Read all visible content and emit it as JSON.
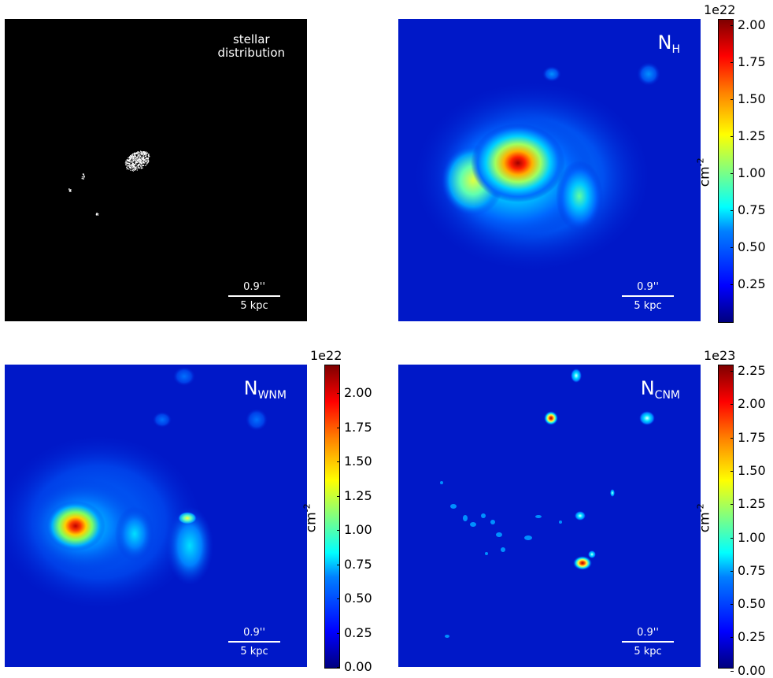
{
  "panels": {
    "stellar": {
      "label_line1": "stellar",
      "label_line2": "distribution",
      "scale_top": "0.9''",
      "scale_bottom": "5 kpc"
    },
    "nh": {
      "title_main": "N",
      "title_sub": "H",
      "scale_top": "0.9''",
      "scale_bottom": "5 kpc"
    },
    "nwnm": {
      "title_main": "N",
      "title_sub": "WNM",
      "scale_top": "0.9''",
      "scale_bottom": "5 kpc"
    },
    "ncnm": {
      "title_main": "N",
      "title_sub": "CNM",
      "scale_top": "0.9''",
      "scale_bottom": "5 kpc"
    }
  },
  "colorbars": {
    "nh": {
      "exponent": "1e22",
      "unit_base": "cm",
      "unit_sup": "-2",
      "ticks": [
        "2.00",
        "1.75",
        "1.50",
        "1.25",
        "1.00",
        "0.75",
        "0.50",
        "0.25"
      ]
    },
    "nwnm": {
      "exponent": "1e22",
      "unit_base": "cm",
      "unit_sup": "-2",
      "ticks": [
        "2.00",
        "1.75",
        "1.50",
        "1.25",
        "1.00",
        "0.75",
        "0.50",
        "0.25",
        "0.00"
      ]
    },
    "ncnm": {
      "exponent": "1e23",
      "unit_base": "cm",
      "unit_sup": "-2",
      "ticks": [
        "2.25",
        "2.00",
        "1.75",
        "1.50",
        "1.25",
        "1.00",
        "0.75",
        "0.50",
        "0.25",
        "0.00"
      ]
    }
  },
  "colors": {
    "map_background": "#0018c8",
    "stellar_background": "#000000",
    "colormap": "jet"
  }
}
